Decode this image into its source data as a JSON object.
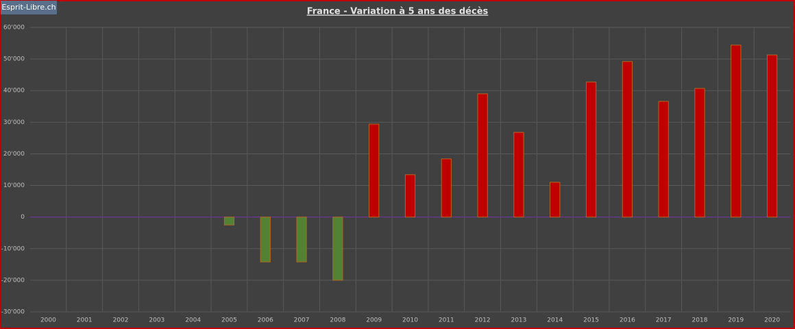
{
  "chart_data": {
    "type": "bar",
    "title": "France - Variation à 5 ans des décès",
    "watermark": "Esprit-Libre.ch",
    "categories": [
      "2000",
      "2001",
      "2002",
      "2003",
      "2004",
      "2005",
      "2006",
      "2007",
      "2008",
      "2009",
      "2010",
      "2011",
      "2012",
      "2013",
      "2014",
      "2015",
      "2016",
      "2017",
      "2018",
      "2019",
      "2020"
    ],
    "values": [
      null,
      null,
      null,
      null,
      null,
      -2500,
      -14200,
      -14200,
      -20000,
      29400,
      13400,
      18400,
      39000,
      26800,
      11000,
      42700,
      49200,
      36600,
      40700,
      54400,
      51300
    ],
    "positive_color": "#c00000",
    "negative_color": "#548235",
    "zero_line_color": "#7030a0",
    "ylim": [
      -30000,
      60000
    ],
    "yticks": [
      {
        "value": -30000,
        "label": "-30'000"
      },
      {
        "value": -20000,
        "label": "-20'000"
      },
      {
        "value": -10000,
        "label": "-10'000"
      },
      0,
      {
        "value": 10000,
        "label": "10'000"
      },
      {
        "value": 20000,
        "label": "20'000"
      },
      {
        "value": 30000,
        "label": "30'000"
      },
      {
        "value": 40000,
        "label": "40'000"
      },
      {
        "value": 50000,
        "label": "50'000"
      },
      {
        "value": 60000,
        "label": "60'000"
      }
    ],
    "grid": true
  }
}
